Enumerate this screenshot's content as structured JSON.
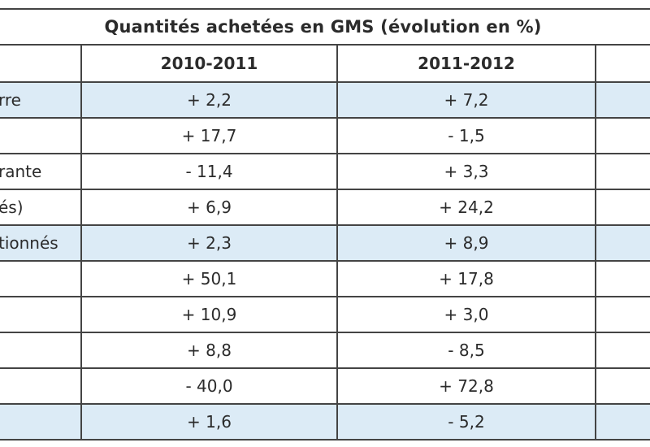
{
  "table": {
    "title": "Quantités achetées en GMS (évolution en %)",
    "headers": [
      "",
      "2010-2011",
      "2011-2012",
      ""
    ],
    "rows": [
      {
        "label": "rre",
        "v1": "+ 2,2",
        "v2": "+ 7,2",
        "highlight": true
      },
      {
        "label": "",
        "v1": "+ 17,7",
        "v2": "- 1,5",
        "highlight": false
      },
      {
        "label": "rante",
        "v1": "- 11,4",
        "v2": "+ 3,3",
        "highlight": false
      },
      {
        "label": "és)",
        "v1": "+ 6,9",
        "v2": "+ 24,2",
        "highlight": false
      },
      {
        "label": "tionnés",
        "v1": "+ 2,3",
        "v2": "+ 8,9",
        "highlight": true
      },
      {
        "label": "",
        "v1": "+ 50,1",
        "v2": "+ 17,8",
        "highlight": false
      },
      {
        "label": "",
        "v1": "+ 10,9",
        "v2": "+ 3,0",
        "highlight": false
      },
      {
        "label": "",
        "v1": "+ 8,8",
        "v2": "- 8,5",
        "highlight": false
      },
      {
        "label": "",
        "v1": "- 40,0",
        "v2": "+ 72,8",
        "highlight": false
      },
      {
        "label": "",
        "v1": "+ 1,6",
        "v2": "- 5,2",
        "highlight": true
      }
    ]
  }
}
